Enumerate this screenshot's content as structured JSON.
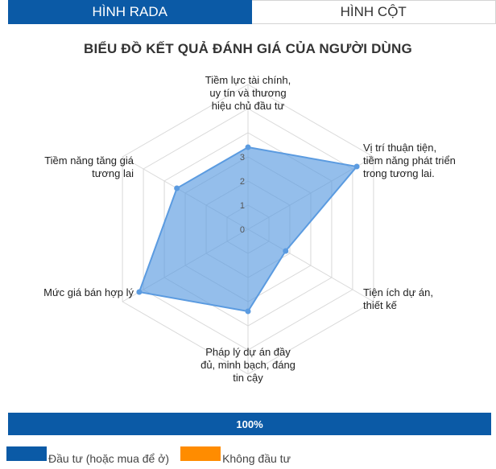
{
  "tabs": [
    {
      "label": "HÌNH RADA",
      "active": true
    },
    {
      "label": "HÌNH CỘT",
      "active": false
    }
  ],
  "chart_data": {
    "type": "radar",
    "title": "BIỂU ĐỒ KẾT QUẢ ĐÁNH GIÁ CỦA NGƯỜI DÙNG",
    "categories": [
      "Tiềm lực tài chính, uy tín và thương hiệu chủ đầu tư",
      "Vị trí thuận tiện, tiềm năng phát triển trong tương lai.",
      "Tiện ích dự án, thiết kế",
      "Pháp lý dự án đầy đủ, minh bạch, đáng tin cậy",
      "Mức giá bán hợp lý",
      "Tiềm năng tăng giá tương lai"
    ],
    "series": [
      {
        "values": [
          3.4,
          5.2,
          1.8,
          3.4,
          5.2,
          3.4
        ],
        "color": "#5b9be0"
      }
    ],
    "rlim": [
      0,
      6
    ],
    "ticks": [
      "0",
      "1",
      "2",
      "3"
    ],
    "grid": true
  },
  "progress": {
    "label": "100%",
    "value": 1.0,
    "color": "#0b5aa6"
  },
  "legend": [
    {
      "label": "Đầu tư (hoặc mua để ở)",
      "color": "#0b5aa6"
    },
    {
      "label": "Không đầu tư",
      "color": "#ff8c00"
    }
  ]
}
